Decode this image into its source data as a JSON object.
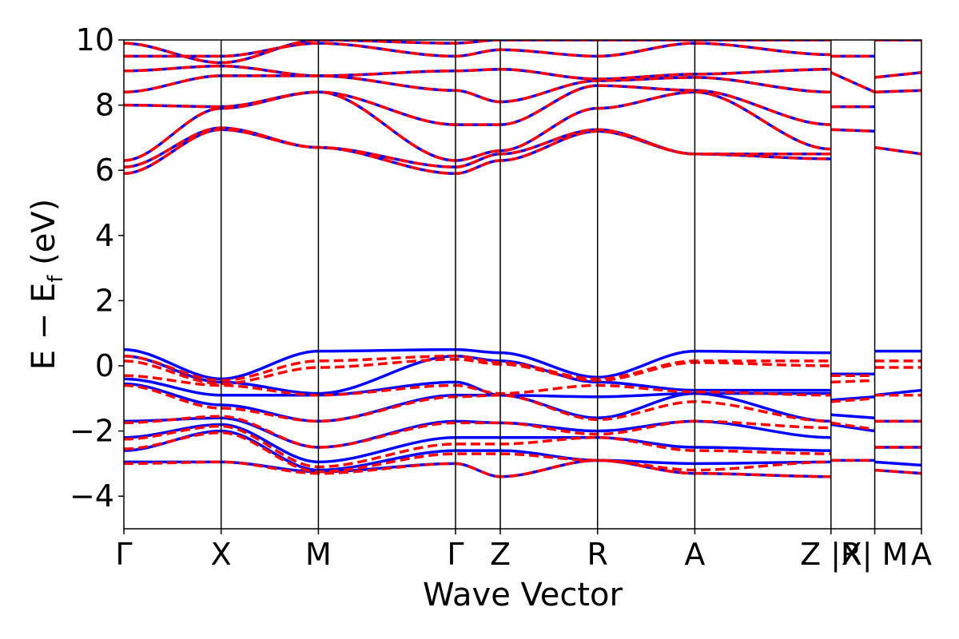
{
  "chart_data": {
    "type": "line",
    "title": "",
    "xlabel": "Wave Vector",
    "ylabel": {
      "main": "E − E",
      "sub": "f",
      "unit": " (eV)"
    },
    "ylim": [
      -5,
      10
    ],
    "y_ticks": [
      -4,
      -2,
      0,
      2,
      4,
      6,
      8,
      10
    ],
    "y_tick_labels": [
      "−4",
      "−2",
      "0",
      "2",
      "4",
      "6",
      "8",
      "10"
    ],
    "xlim": [
      0,
      8.2
    ],
    "k_points": [
      {
        "label": "Γ",
        "x": 0
      },
      {
        "label": "X",
        "x": 1.0
      },
      {
        "label": "M",
        "x": 2.0
      },
      {
        "label": "Γ",
        "x": 3.41
      },
      {
        "label": "Z",
        "x": 3.87
      },
      {
        "label": "R",
        "x": 4.87
      },
      {
        "label": "A",
        "x": 5.87
      },
      {
        "label": "Z |R",
        "x": 7.27
      },
      {
        "label": "X| M",
        "x": 7.72
      },
      {
        "label": "A",
        "x": 8.2
      }
    ],
    "legend": "none",
    "grid": false,
    "series_style": [
      {
        "color": "#0000ff",
        "dash": "solid"
      },
      {
        "color": "#ff0000",
        "dash": "dashed"
      }
    ],
    "series": [
      {
        "style": 0,
        "x": [
          0,
          1,
          2,
          3.41,
          3.87,
          4.87,
          5.87,
          7.27
        ],
        "y": [
          0.5,
          -0.4,
          0.45,
          0.5,
          0.4,
          -0.35,
          0.45,
          0.4
        ]
      },
      {
        "style": 0,
        "x": [
          0,
          1,
          2,
          3.41,
          3.87,
          4.87,
          5.87,
          7.27
        ],
        "y": [
          0.3,
          -0.5,
          -0.85,
          0.3,
          0.15,
          -0.5,
          -0.75,
          -0.75
        ]
      },
      {
        "style": 0,
        "x": [
          0,
          1,
          2,
          3.41,
          3.87,
          4.87,
          5.87,
          7.27
        ],
        "y": [
          -0.4,
          -0.9,
          -0.9,
          -0.5,
          -0.9,
          -0.95,
          -0.85,
          -0.85
        ]
      },
      {
        "style": 0,
        "x": [
          0,
          1,
          2,
          3.41,
          3.87,
          4.87,
          5.87,
          7.27
        ],
        "y": [
          -0.55,
          -1.2,
          -1.7,
          -0.9,
          -0.9,
          -1.6,
          -0.85,
          -1.7
        ]
      },
      {
        "style": 0,
        "x": [
          0,
          1,
          2,
          3.41,
          3.87,
          4.87,
          5.87,
          7.27
        ],
        "y": [
          -1.7,
          -1.6,
          -2.5,
          -1.7,
          -1.75,
          -2.0,
          -1.7,
          -2.2
        ]
      },
      {
        "style": 0,
        "x": [
          0,
          1,
          2,
          3.41,
          3.87,
          4.87,
          5.87,
          7.27
        ],
        "y": [
          -2.2,
          -1.8,
          -2.95,
          -2.2,
          -2.2,
          -2.2,
          -2.5,
          -2.6
        ]
      },
      {
        "style": 0,
        "x": [
          0,
          1,
          2,
          3.41,
          3.87,
          4.87,
          5.87,
          7.27
        ],
        "y": [
          -2.6,
          -2.0,
          -3.2,
          -2.6,
          -2.6,
          -2.9,
          -3.0,
          -2.95
        ]
      },
      {
        "style": 0,
        "x": [
          0,
          1,
          2,
          3.41,
          3.87,
          4.87,
          5.87,
          7.27
        ],
        "y": [
          -2.95,
          -2.95,
          -3.25,
          -3.0,
          -3.4,
          -2.9,
          -3.3,
          -3.4
        ]
      },
      {
        "style": 0,
        "x": [
          0,
          1,
          2,
          3.41,
          3.87,
          4.87,
          5.87,
          7.27
        ],
        "y": [
          5.9,
          7.25,
          6.7,
          5.9,
          6.3,
          7.2,
          6.5,
          6.35
        ]
      },
      {
        "style": 0,
        "x": [
          0,
          1,
          2,
          3.41,
          3.87,
          4.87,
          5.87,
          7.27
        ],
        "y": [
          6.1,
          7.3,
          6.7,
          6.1,
          6.5,
          7.25,
          6.5,
          6.5
        ]
      },
      {
        "style": 0,
        "x": [
          0,
          1,
          2,
          3.41,
          3.87,
          4.87,
          5.87,
          7.27
        ],
        "y": [
          6.3,
          7.9,
          8.4,
          6.3,
          6.6,
          7.9,
          8.4,
          6.65
        ]
      },
      {
        "style": 0,
        "x": [
          0,
          1,
          2,
          3.41,
          3.87,
          4.87,
          5.87,
          7.27
        ],
        "y": [
          8.0,
          7.95,
          8.4,
          7.4,
          7.4,
          8.6,
          8.45,
          7.4
        ]
      },
      {
        "style": 0,
        "x": [
          0,
          1,
          2,
          3.41,
          3.87,
          4.87,
          5.87,
          7.27
        ],
        "y": [
          8.4,
          8.9,
          8.9,
          8.45,
          8.1,
          8.75,
          8.85,
          8.4
        ]
      },
      {
        "style": 0,
        "x": [
          0,
          1,
          2,
          3.41,
          3.87,
          4.87,
          5.87,
          7.27
        ],
        "y": [
          9.05,
          9.2,
          8.9,
          9.05,
          9.1,
          8.8,
          8.95,
          9.1
        ]
      },
      {
        "style": 0,
        "x": [
          0,
          1,
          2,
          3.41,
          3.87,
          4.87,
          5.87,
          7.27
        ],
        "y": [
          9.5,
          9.5,
          9.9,
          9.5,
          9.7,
          9.5,
          9.9,
          9.55
        ]
      },
      {
        "style": 0,
        "x": [
          0,
          1,
          2,
          3.41,
          3.87,
          4.87,
          5.87,
          7.27
        ],
        "y": [
          9.9,
          9.3,
          10.0,
          9.9,
          10.0,
          10.0,
          10.0,
          10.0
        ]
      },
      {
        "style": 0,
        "x": [
          7.27,
          7.72
        ],
        "y": [
          -0.25,
          -0.25
        ]
      },
      {
        "style": 0,
        "x": [
          7.27,
          7.72
        ],
        "y": [
          -1.05,
          -0.95
        ]
      },
      {
        "style": 0,
        "x": [
          7.27,
          7.72
        ],
        "y": [
          -1.5,
          -1.6
        ]
      },
      {
        "style": 0,
        "x": [
          7.27,
          7.72
        ],
        "y": [
          -1.8,
          -2.0
        ]
      },
      {
        "style": 0,
        "x": [
          7.27,
          7.72
        ],
        "y": [
          -2.9,
          -2.9
        ]
      },
      {
        "style": 0,
        "x": [
          7.72,
          8.2
        ],
        "y": [
          0.45,
          0.45
        ]
      },
      {
        "style": 0,
        "x": [
          7.72,
          8.2
        ],
        "y": [
          -0.9,
          -0.75
        ]
      },
      {
        "style": 0,
        "x": [
          7.72,
          8.2
        ],
        "y": [
          -1.7,
          -1.7
        ]
      },
      {
        "style": 0,
        "x": [
          7.72,
          8.2
        ],
        "y": [
          -2.5,
          -2.5
        ]
      },
      {
        "style": 0,
        "x": [
          7.72,
          8.2
        ],
        "y": [
          -2.95,
          -3.05
        ]
      },
      {
        "style": 0,
        "x": [
          7.72,
          8.2
        ],
        "y": [
          -3.2,
          -3.3
        ]
      },
      {
        "style": 0,
        "x": [
          7.27,
          7.72
        ],
        "y": [
          7.25,
          7.2
        ]
      },
      {
        "style": 0,
        "x": [
          7.27,
          7.72
        ],
        "y": [
          7.95,
          7.95
        ]
      },
      {
        "style": 0,
        "x": [
          7.27,
          7.72
        ],
        "y": [
          9.0,
          8.4
        ]
      },
      {
        "style": 0,
        "x": [
          7.27,
          7.72
        ],
        "y": [
          9.5,
          9.5
        ]
      },
      {
        "style": 0,
        "x": [
          7.72,
          8.2
        ],
        "y": [
          6.7,
          6.5
        ]
      },
      {
        "style": 0,
        "x": [
          7.72,
          8.2
        ],
        "y": [
          8.4,
          8.45
        ]
      },
      {
        "style": 0,
        "x": [
          7.72,
          8.2
        ],
        "y": [
          8.85,
          9.0
        ]
      },
      {
        "style": 0,
        "x": [
          7.72,
          8.2
        ],
        "y": [
          10.0,
          10.0
        ]
      },
      {
        "style": 1,
        "x": [
          0,
          1,
          2,
          3.41,
          3.87,
          4.87,
          5.87,
          7.27
        ],
        "y": [
          0.3,
          -0.45,
          0.15,
          0.3,
          0.1,
          -0.4,
          0.15,
          0.15
        ]
      },
      {
        "style": 1,
        "x": [
          0,
          1,
          2,
          3.41,
          3.87,
          4.87,
          5.87,
          7.27
        ],
        "y": [
          0.15,
          -0.55,
          -0.05,
          0.2,
          0.05,
          -0.45,
          0.1,
          0.0
        ]
      },
      {
        "style": 1,
        "x": [
          0,
          1,
          2,
          3.41,
          3.87,
          4.87,
          5.87,
          7.27
        ],
        "y": [
          -0.3,
          -0.6,
          -0.9,
          -0.6,
          -0.85,
          -0.6,
          -0.8,
          -0.9
        ]
      },
      {
        "style": 1,
        "x": [
          0,
          1,
          2,
          3.41,
          3.87,
          4.87,
          5.87,
          7.27
        ],
        "y": [
          -0.6,
          -1.3,
          -1.7,
          -0.95,
          -0.9,
          -1.65,
          -1.1,
          -1.7
        ]
      },
      {
        "style": 1,
        "x": [
          0,
          1,
          2,
          3.41,
          3.87,
          4.87,
          5.87,
          7.27
        ],
        "y": [
          -1.75,
          -1.55,
          -2.5,
          -1.75,
          -1.75,
          -2.1,
          -1.7,
          -1.9
        ]
      },
      {
        "style": 1,
        "x": [
          0,
          1,
          2,
          3.41,
          3.87,
          4.87,
          5.87,
          7.27
        ],
        "y": [
          -2.25,
          -1.85,
          -3.1,
          -2.4,
          -2.4,
          -2.2,
          -2.6,
          -2.7
        ]
      },
      {
        "style": 1,
        "x": [
          0,
          1,
          2,
          3.41,
          3.87,
          4.87,
          5.87,
          7.27
        ],
        "y": [
          -2.55,
          -2.05,
          -3.25,
          -2.7,
          -2.7,
          -2.9,
          -3.2,
          -2.95
        ]
      },
      {
        "style": 1,
        "x": [
          0,
          1,
          2,
          3.41,
          3.87,
          4.87,
          5.87,
          7.27
        ],
        "y": [
          -3.0,
          -2.95,
          -3.3,
          -3.0,
          -3.4,
          -2.9,
          -3.3,
          -3.4
        ]
      },
      {
        "style": 1,
        "x": [
          0,
          1,
          2,
          3.41,
          3.87,
          4.87,
          5.87,
          7.27
        ],
        "y": [
          5.9,
          7.25,
          6.7,
          5.9,
          6.3,
          7.2,
          6.5,
          6.35
        ]
      },
      {
        "style": 1,
        "x": [
          0,
          1,
          2,
          3.41,
          3.87,
          4.87,
          5.87,
          7.27
        ],
        "y": [
          6.1,
          7.3,
          6.7,
          6.1,
          6.5,
          7.25,
          6.5,
          6.5
        ]
      },
      {
        "style": 1,
        "x": [
          0,
          1,
          2,
          3.41,
          3.87,
          4.87,
          5.87,
          7.27
        ],
        "y": [
          6.3,
          7.9,
          8.4,
          6.3,
          6.6,
          7.9,
          8.4,
          6.65
        ]
      },
      {
        "style": 1,
        "x": [
          0,
          1,
          2,
          3.41,
          3.87,
          4.87,
          5.87,
          7.27
        ],
        "y": [
          8.0,
          7.95,
          8.4,
          7.4,
          7.4,
          8.6,
          8.45,
          7.4
        ]
      },
      {
        "style": 1,
        "x": [
          0,
          1,
          2,
          3.41,
          3.87,
          4.87,
          5.87,
          7.27
        ],
        "y": [
          8.4,
          8.9,
          8.9,
          8.45,
          8.1,
          8.75,
          8.85,
          8.4
        ]
      },
      {
        "style": 1,
        "x": [
          0,
          1,
          2,
          3.41,
          3.87,
          4.87,
          5.87,
          7.27
        ],
        "y": [
          9.05,
          9.2,
          8.9,
          9.05,
          9.1,
          8.8,
          8.95,
          9.1
        ]
      },
      {
        "style": 1,
        "x": [
          0,
          1,
          2,
          3.41,
          3.87,
          4.87,
          5.87,
          7.27
        ],
        "y": [
          9.5,
          9.5,
          9.9,
          9.5,
          9.7,
          9.5,
          9.9,
          9.55
        ]
      },
      {
        "style": 1,
        "x": [
          0,
          1,
          2,
          3.41,
          3.87,
          4.87,
          5.87,
          7.27
        ],
        "y": [
          9.9,
          9.3,
          10.0,
          9.9,
          10.0,
          10.0,
          10.0,
          10.0
        ]
      },
      {
        "style": 1,
        "x": [
          7.27,
          7.72
        ],
        "y": [
          -0.3,
          -0.3
        ]
      },
      {
        "style": 1,
        "x": [
          7.27,
          7.72
        ],
        "y": [
          -0.5,
          -0.45
        ]
      },
      {
        "style": 1,
        "x": [
          7.27,
          7.72
        ],
        "y": [
          -1.1,
          -1.0
        ]
      },
      {
        "style": 1,
        "x": [
          7.27,
          7.72
        ],
        "y": [
          -1.75,
          -1.95
        ]
      },
      {
        "style": 1,
        "x": [
          7.27,
          7.72
        ],
        "y": [
          -2.9,
          -2.9
        ]
      },
      {
        "style": 1,
        "x": [
          7.72,
          8.2
        ],
        "y": [
          0.15,
          0.15
        ]
      },
      {
        "style": 1,
        "x": [
          7.72,
          8.2
        ],
        "y": [
          -0.05,
          -0.05
        ]
      },
      {
        "style": 1,
        "x": [
          7.72,
          8.2
        ],
        "y": [
          -0.9,
          -0.9
        ]
      },
      {
        "style": 1,
        "x": [
          7.72,
          8.2
        ],
        "y": [
          -1.7,
          -1.7
        ]
      },
      {
        "style": 1,
        "x": [
          7.72,
          8.2
        ],
        "y": [
          -2.5,
          -2.5
        ]
      },
      {
        "style": 1,
        "x": [
          7.72,
          8.2
        ],
        "y": [
          -3.2,
          -3.3
        ]
      },
      {
        "style": 1,
        "x": [
          7.27,
          7.72
        ],
        "y": [
          7.25,
          7.2
        ]
      },
      {
        "style": 1,
        "x": [
          7.27,
          7.72
        ],
        "y": [
          7.95,
          7.95
        ]
      },
      {
        "style": 1,
        "x": [
          7.27,
          7.72
        ],
        "y": [
          9.0,
          8.4
        ]
      },
      {
        "style": 1,
        "x": [
          7.27,
          7.72
        ],
        "y": [
          9.5,
          9.5
        ]
      },
      {
        "style": 1,
        "x": [
          7.72,
          8.2
        ],
        "y": [
          6.7,
          6.5
        ]
      },
      {
        "style": 1,
        "x": [
          7.72,
          8.2
        ],
        "y": [
          8.4,
          8.45
        ]
      },
      {
        "style": 1,
        "x": [
          7.72,
          8.2
        ],
        "y": [
          8.85,
          9.0
        ]
      },
      {
        "style": 1,
        "x": [
          7.72,
          8.2
        ],
        "y": [
          10.0,
          10.0
        ]
      }
    ]
  }
}
